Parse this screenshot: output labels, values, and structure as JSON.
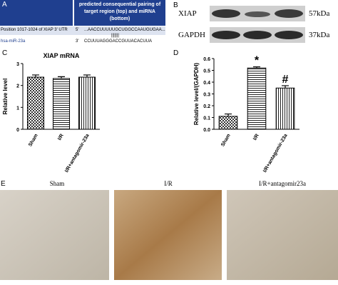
{
  "panels": {
    "a": {
      "letter": "A",
      "header": "predicted consequential pairing of target region (top) and miRNA (bottom)",
      "rows": [
        [
          "Position 1017-1024 of XIAP 3' UTR",
          "5'",
          "...AACCUUUUUGCUGGCCAAUGUGAA..."
        ],
        [
          "hsa-miR-23a",
          "3'",
          "CCUUUAGGGACCGUUACACUUA"
        ]
      ],
      "pairing": "|||||||"
    },
    "b": {
      "letter": "B",
      "rows": [
        [
          "XIAP",
          "57kDa"
        ],
        [
          "GAPDH",
          "37kDa"
        ]
      ]
    },
    "c": {
      "letter": "C"
    },
    "d": {
      "letter": "D"
    },
    "e": {
      "letter": "E",
      "labels": [
        "Sham",
        "I/R",
        "I/R+antagomir23a"
      ]
    }
  },
  "chart_data": [
    {
      "type": "bar",
      "title": "XIAP mRNA",
      "y_label": "Relative level",
      "categories": [
        "Sham",
        "I/R",
        "I/R+antagomir-23a"
      ],
      "values": [
        2.38,
        2.32,
        2.38
      ],
      "errors": [
        0.1,
        0.08,
        0.1
      ],
      "ylim": [
        0,
        3
      ],
      "yticks": [
        0,
        1,
        2,
        3
      ]
    },
    {
      "type": "bar",
      "y_label": "Relative level/(GAPDH)",
      "categories": [
        "Sham",
        "I/R",
        "I/R+antagomir-23a"
      ],
      "values": [
        0.11,
        0.52,
        0.35
      ],
      "errors": [
        0.02,
        0.01,
        0.02
      ],
      "annotations": [
        null,
        "*",
        "#"
      ],
      "ylim": [
        0,
        0.6
      ],
      "yticks": [
        {
          "value": 0,
          "label": "0.0"
        },
        0.1,
        0.2,
        0.3,
        0.4,
        0.5,
        0.6
      ]
    }
  ]
}
